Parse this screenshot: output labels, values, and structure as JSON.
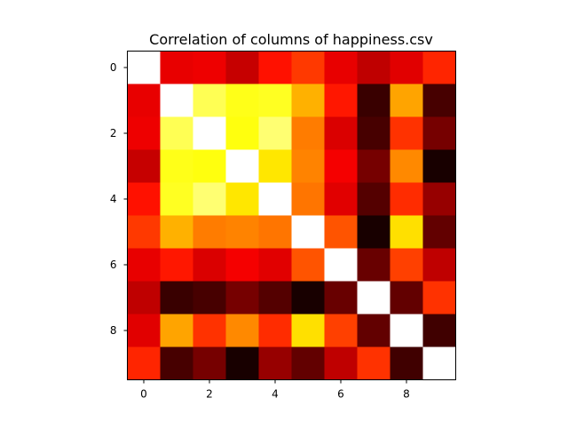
{
  "chart_data": {
    "type": "heatmap",
    "title": "Correlation of columns of happiness.csv",
    "xlabel": "",
    "ylabel": "",
    "colormap": "hot",
    "value_range": [
      0,
      1
    ],
    "x_ticks": [
      0,
      2,
      4,
      6,
      8
    ],
    "y_ticks": [
      0,
      2,
      4,
      6,
      8
    ],
    "rows": 10,
    "cols": 10,
    "matrix": [
      [
        1.0,
        0.33,
        0.34,
        0.28,
        0.39,
        0.45,
        0.33,
        0.27,
        0.32,
        0.42
      ],
      [
        0.33,
        1.0,
        0.83,
        0.77,
        0.78,
        0.63,
        0.4,
        0.07,
        0.61,
        0.09
      ],
      [
        0.34,
        0.83,
        1.0,
        0.76,
        0.86,
        0.55,
        0.31,
        0.09,
        0.44,
        0.16
      ],
      [
        0.28,
        0.77,
        0.76,
        1.0,
        0.71,
        0.56,
        0.35,
        0.16,
        0.57,
        0.02
      ],
      [
        0.39,
        0.78,
        0.86,
        0.71,
        1.0,
        0.54,
        0.32,
        0.11,
        0.43,
        0.21
      ],
      [
        0.45,
        0.63,
        0.55,
        0.56,
        0.54,
        1.0,
        0.49,
        0.02,
        0.7,
        0.13
      ],
      [
        0.33,
        0.4,
        0.31,
        0.35,
        0.32,
        0.49,
        1.0,
        0.14,
        0.46,
        0.27
      ],
      [
        0.27,
        0.07,
        0.09,
        0.16,
        0.11,
        0.02,
        0.14,
        1.0,
        0.13,
        0.44
      ],
      [
        0.32,
        0.61,
        0.44,
        0.57,
        0.43,
        0.7,
        0.46,
        0.13,
        1.0,
        0.08
      ],
      [
        0.42,
        0.09,
        0.16,
        0.02,
        0.21,
        0.13,
        0.27,
        0.44,
        0.08,
        1.0
      ]
    ]
  }
}
